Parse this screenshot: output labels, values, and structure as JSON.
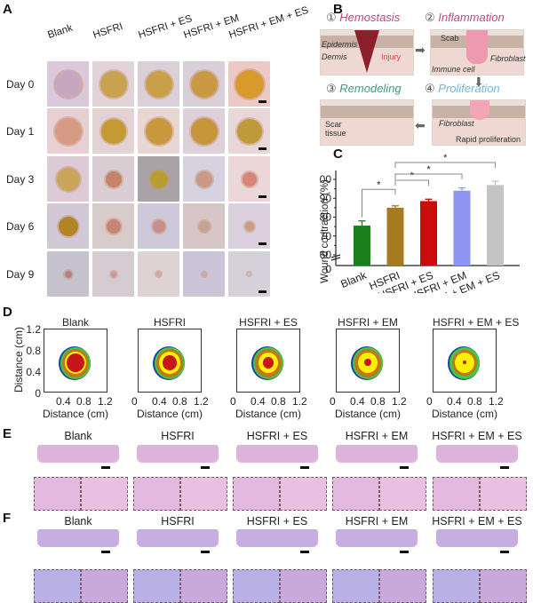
{
  "panels": {
    "A": {
      "label": "A",
      "columns": [
        "Blank",
        "HSFRI",
        "HSFRI + ES",
        "HSFRI + EM",
        "HSFRI + EM + ES"
      ],
      "rows": [
        "Day 0",
        "Day 1",
        "Day 3",
        "Day 6",
        "Day 9"
      ]
    },
    "B": {
      "label": "B",
      "stages": [
        {
          "num": "①",
          "name": "Hemostasis",
          "color": "#c2457e",
          "labels": [
            "Epidermis",
            "Dermis",
            "Injury"
          ]
        },
        {
          "num": "②",
          "name": "Inflammation",
          "color": "#c2457e",
          "labels": [
            "Scab",
            "Fibroblast",
            "Immune cell"
          ]
        },
        {
          "num": "③",
          "name": "Remodeling",
          "color": "#3f9f78",
          "labels": [
            "Scar",
            "tissue"
          ]
        },
        {
          "num": "④",
          "name": "Proliferation",
          "color": "#6fb6e6",
          "labels": [
            "Fibroblast",
            "Rapid proliferation"
          ]
        }
      ]
    },
    "C": {
      "label": "C"
    },
    "D": {
      "label": "D",
      "titles": [
        "Blank",
        "HSFRI",
        "HSFRI + ES",
        "HSFRI + EM",
        "HSFRI + EM + ES"
      ],
      "ylabel": "Distance (cm)",
      "xlabel": "Distance (cm)",
      "yticks": [
        "1.2",
        "0.8",
        "0.4",
        "0"
      ],
      "xticks_first": [
        "0.4",
        "0.8",
        "1.2"
      ],
      "xticks": [
        "0",
        "0.4",
        "0.8",
        "1.2"
      ]
    },
    "E": {
      "label": "E",
      "titles": [
        "Blank",
        "HSFRI",
        "HSFRI + ES",
        "HSFRI + EM",
        "HSFRI + EM + ES"
      ]
    },
    "F": {
      "label": "F",
      "titles": [
        "Blank",
        "HSFRI",
        "HSFRI + ES",
        "HSFRI + EM",
        "HSFRI + EM + ES"
      ]
    }
  },
  "chart_data": {
    "type": "bar",
    "title": "",
    "xlabel": "",
    "ylabel": "Wound contraction (%)",
    "categories": [
      "Blank",
      "HSFRI",
      "HSFRI + ES",
      "HSFRI + EM",
      "HSFRI + EM + ES"
    ],
    "values": [
      75.5,
      85,
      88.5,
      94,
      97
    ],
    "errors": [
      2.5,
      1,
      1,
      1.5,
      2
    ],
    "colors": [
      "#1b7f1b",
      "#a57b1f",
      "#cc0b0b",
      "#8f95f2",
      "#c4c4c4"
    ],
    "yticks": [
      0,
      60,
      70,
      80,
      90,
      100
    ],
    "ylim": [
      0,
      105
    ],
    "axis_break": "between 0 and 60",
    "significance": [
      {
        "from": "Blank",
        "to": "HSFRI",
        "label": "*"
      },
      {
        "from": "HSFRI",
        "to": "HSFRI + ES",
        "label": "*"
      },
      {
        "from": "HSFRI",
        "to": "HSFRI + EM",
        "label": "*"
      },
      {
        "from": "HSFRI",
        "to": "HSFRI + EM + ES",
        "label": "*"
      }
    ]
  }
}
